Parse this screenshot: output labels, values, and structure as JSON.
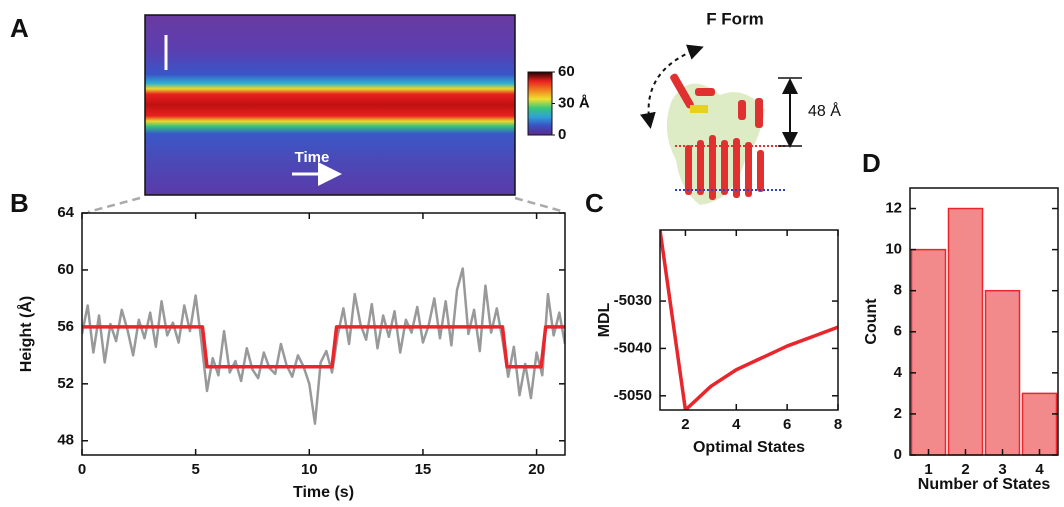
{
  "panel_labels": [
    "A",
    "B",
    "C",
    "D"
  ],
  "annotations": {
    "time_arrow": "Time",
    "structure_title": "F Form",
    "height_label": "48 Å"
  },
  "chart_data": [
    {
      "type": "colorbar",
      "ylim": [
        0,
        60
      ],
      "yticks": [
        0,
        {
          "value": 30,
          "label": "30 Å"
        },
        60
      ],
      "colors": [
        "#5b2a8c",
        "#3a4fc0",
        "#2fa0d8",
        "#38c878",
        "#f0e030",
        "#f08020",
        "#e82020",
        "#200000"
      ]
    },
    {
      "type": "line",
      "xlabel": "Time (s)",
      "ylabel": "Height (Å)",
      "xlim": [
        0,
        21.25
      ],
      "xticks": [
        0,
        5,
        10,
        15,
        20
      ],
      "ylim": [
        47,
        64
      ],
      "yticks": [
        48,
        52,
        56,
        60,
        64
      ],
      "series": [
        {
          "color": "#999999",
          "linewidth": 2.5,
          "x": [
            0,
            0.25,
            0.5,
            0.75,
            1,
            1.25,
            1.5,
            1.75,
            2,
            2.25,
            2.5,
            2.75,
            3,
            3.25,
            3.5,
            3.75,
            4,
            4.25,
            4.5,
            4.75,
            5,
            5.25,
            5.5,
            5.75,
            6,
            6.25,
            6.5,
            6.75,
            7,
            7.25,
            7.5,
            7.75,
            8,
            8.25,
            8.5,
            8.75,
            9,
            9.25,
            9.5,
            9.75,
            10,
            10.25,
            10.5,
            10.75,
            11,
            11.25,
            11.5,
            11.75,
            12,
            12.25,
            12.5,
            12.75,
            13,
            13.25,
            13.5,
            13.75,
            14,
            14.25,
            14.5,
            14.75,
            15,
            15.25,
            15.5,
            15.75,
            16,
            16.25,
            16.5,
            16.75,
            17,
            17.25,
            17.5,
            17.75,
            18,
            18.25,
            18.5,
            18.75,
            19,
            19.25,
            19.5,
            19.75,
            20,
            20.25,
            20.5,
            20.75,
            21,
            21.25
          ],
          "values": [
            55.5,
            57.5,
            54.2,
            56.8,
            53.5,
            56.2,
            55,
            57.2,
            55.8,
            54,
            56.5,
            55.2,
            57,
            54.6,
            57.8,
            55.4,
            56.3,
            54.9,
            57.5,
            55.7,
            58.2,
            55,
            51.5,
            53.8,
            52.6,
            55.7,
            52.8,
            53.6,
            52.2,
            54.5,
            53,
            52.4,
            54.2,
            53.1,
            52.7,
            54.8,
            53.3,
            52.5,
            54,
            53.2,
            52,
            49.2,
            53.5,
            54.3,
            52.8,
            55.4,
            57.3,
            54.8,
            58.3,
            56.2,
            55.1,
            57.6,
            54.5,
            56.8,
            55.3,
            57.1,
            54.2,
            56.5,
            55.6,
            57.4,
            54.9,
            56.1,
            58,
            55.2,
            57.8,
            54.7,
            58.6,
            60.1,
            55.5,
            57.2,
            54.3,
            58.9,
            55.6,
            57.3,
            55.1,
            52.5,
            54.6,
            51.2,
            53.4,
            51,
            54.2,
            52.6,
            58.3,
            55.4,
            57,
            54.8
          ]
        },
        {
          "color": "#e8262c",
          "linewidth": 3.5,
          "x": [
            0,
            5.3,
            5.5,
            11,
            11.2,
            18.5,
            18.7,
            20.2,
            20.4,
            21.25
          ],
          "values": [
            56,
            56,
            53.2,
            53.2,
            56,
            56,
            53.2,
            53.2,
            56,
            56
          ]
        }
      ]
    },
    {
      "type": "line",
      "xlabel": "Optimal States",
      "ylabel": "MDL",
      "xlim": [
        1,
        8
      ],
      "xticks": [
        2,
        4,
        6,
        8
      ],
      "ylim": [
        -5053,
        -5015
      ],
      "yticks": [
        -5030,
        -5040,
        -5050
      ],
      "series": [
        {
          "color": "#e8262c",
          "linewidth": 3.5,
          "x": [
            1,
            2,
            3,
            4,
            5,
            6,
            7,
            8
          ],
          "values": [
            -5015,
            -5053,
            -5048,
            -5044.5,
            -5042,
            -5039.5,
            -5037.5,
            -5035.5
          ]
        }
      ]
    },
    {
      "type": "bar",
      "xlabel": "Number of States",
      "ylabel": "Count",
      "categories": [
        "1",
        "2",
        "3",
        "4"
      ],
      "values": [
        10,
        12,
        8,
        3
      ],
      "color": "#f28a8c",
      "edgecolor": "#e8262c",
      "ylim": [
        0,
        13
      ],
      "yticks": [
        0,
        2,
        4,
        6,
        8,
        10,
        12
      ]
    }
  ]
}
